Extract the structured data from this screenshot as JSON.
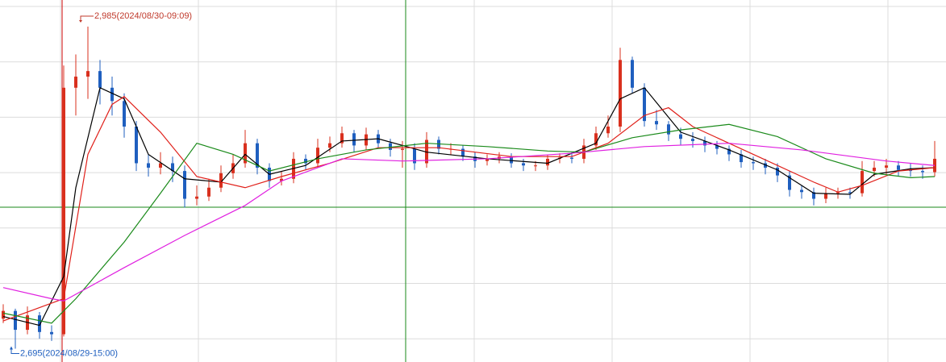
{
  "chart_data": {
    "type": "candlestick",
    "ylim": [
      2683,
      3009
    ],
    "up_color": "#d9301e",
    "down_color": "#1f5fbf",
    "open": [
      2722,
      2729,
      2712,
      2725,
      2710,
      2708,
      2930,
      2940,
      2945,
      2930,
      2918,
      2895,
      2862,
      2858,
      2862,
      2855,
      2830,
      2832,
      2840,
      2853,
      2862,
      2880,
      2858,
      2846,
      2848,
      2866,
      2862,
      2876,
      2880,
      2889,
      2878,
      2888,
      2880,
      2874,
      2875,
      2862,
      2883,
      2875,
      2875,
      2868,
      2864,
      2866,
      2868,
      2862,
      2860,
      2860,
      2866,
      2867,
      2866,
      2878,
      2889,
      2895,
      2955,
      2930,
      2900,
      2897,
      2888,
      2884,
      2882,
      2878,
      2875,
      2870,
      2863,
      2862,
      2858,
      2851,
      2838,
      2836,
      2830,
      2835,
      2836,
      2835,
      2855,
      2858,
      2860,
      2856,
      2855,
      2854
    ],
    "high": [
      2735,
      2731,
      2733,
      2728,
      2716,
      2950,
      2960,
      2985,
      2955,
      2940,
      2925,
      2900,
      2870,
      2872,
      2868,
      2860,
      2842,
      2848,
      2860,
      2870,
      2892,
      2884,
      2862,
      2855,
      2872,
      2870,
      2884,
      2886,
      2895,
      2892,
      2894,
      2892,
      2884,
      2882,
      2880,
      2890,
      2886,
      2880,
      2878,
      2872,
      2870,
      2872,
      2871,
      2866,
      2864,
      2870,
      2871,
      2872,
      2884,
      2895,
      2905,
      2966,
      2958,
      2934,
      2910,
      2900,
      2894,
      2890,
      2886,
      2882,
      2878,
      2874,
      2868,
      2866,
      2862,
      2855,
      2842,
      2840,
      2840,
      2840,
      2840,
      2864,
      2864,
      2866,
      2864,
      2862,
      2860,
      2882
    ],
    "low": [
      2718,
      2695,
      2708,
      2704,
      2702,
      2706,
      2905,
      2920,
      2915,
      2905,
      2885,
      2855,
      2850,
      2852,
      2845,
      2822,
      2824,
      2828,
      2836,
      2848,
      2858,
      2852,
      2840,
      2842,
      2844,
      2856,
      2858,
      2872,
      2876,
      2872,
      2874,
      2876,
      2868,
      2858,
      2856,
      2858,
      2870,
      2870,
      2864,
      2858,
      2860,
      2862,
      2858,
      2855,
      2855,
      2856,
      2862,
      2862,
      2862,
      2874,
      2885,
      2890,
      2925,
      2895,
      2892,
      2882,
      2878,
      2876,
      2872,
      2870,
      2864,
      2858,
      2856,
      2852,
      2845,
      2832,
      2830,
      2824,
      2826,
      2830,
      2830,
      2832,
      2850,
      2852,
      2850,
      2850,
      2848,
      2850
    ],
    "close": [
      2729,
      2712,
      2725,
      2710,
      2708,
      2930,
      2940,
      2945,
      2930,
      2918,
      2895,
      2862,
      2858,
      2862,
      2855,
      2830,
      2832,
      2840,
      2853,
      2862,
      2880,
      2858,
      2846,
      2848,
      2866,
      2862,
      2876,
      2880,
      2889,
      2878,
      2888,
      2880,
      2874,
      2875,
      2862,
      2883,
      2875,
      2875,
      2868,
      2864,
      2866,
      2868,
      2862,
      2860,
      2860,
      2866,
      2867,
      2866,
      2878,
      2889,
      2895,
      2955,
      2930,
      2900,
      2897,
      2888,
      2884,
      2882,
      2878,
      2875,
      2870,
      2863,
      2862,
      2858,
      2851,
      2838,
      2836,
      2830,
      2835,
      2836,
      2835,
      2855,
      2858,
      2860,
      2856,
      2855,
      2854,
      2866
    ],
    "series": [
      {
        "color": "#000000",
        "x": [
          0,
          3,
          5,
          6,
          8,
          10,
          12,
          15,
          18,
          20,
          22,
          25,
          28,
          31,
          35,
          40,
          45,
          49,
          51,
          53,
          56,
          60,
          64,
          67,
          70,
          72,
          75,
          77
        ],
        "values": [
          2724,
          2716,
          2760,
          2840,
          2930,
          2920,
          2870,
          2848,
          2845,
          2870,
          2852,
          2860,
          2882,
          2884,
          2872,
          2866,
          2862,
          2880,
          2920,
          2930,
          2890,
          2874,
          2856,
          2835,
          2834,
          2852,
          2857,
          2858
        ]
      },
      {
        "color": "#e0201a",
        "x": [
          0,
          5,
          7,
          9,
          10,
          13,
          16,
          20,
          23,
          27,
          31,
          36,
          42,
          47,
          50,
          53,
          55,
          57,
          60,
          63,
          67,
          69,
          71,
          74,
          77
        ],
        "values": [
          2720,
          2740,
          2870,
          2915,
          2922,
          2890,
          2850,
          2840,
          2850,
          2862,
          2876,
          2876,
          2868,
          2868,
          2880,
          2905,
          2912,
          2895,
          2880,
          2865,
          2845,
          2836,
          2842,
          2855,
          2858
        ]
      },
      {
        "color": "#1a8a1a",
        "x": [
          0,
          4,
          6,
          10,
          13,
          16,
          19,
          22,
          26,
          30,
          35,
          40,
          45,
          48,
          52,
          56,
          60,
          64,
          68,
          72,
          75,
          77
        ],
        "values": [
          2727,
          2718,
          2740,
          2791,
          2835,
          2880,
          2870,
          2855,
          2866,
          2874,
          2880,
          2877,
          2873,
          2872,
          2885,
          2892,
          2897,
          2886,
          2866,
          2853,
          2849,
          2850
        ]
      },
      {
        "color": "#e020e0",
        "x": [
          0,
          4,
          5,
          10,
          15,
          20,
          23,
          28,
          33,
          40,
          47,
          53,
          60,
          66,
          73,
          77
        ],
        "values": [
          2750,
          2740,
          2738,
          2768,
          2797,
          2824,
          2846,
          2866,
          2864,
          2866,
          2871,
          2877,
          2880,
          2874,
          2864,
          2860
        ]
      }
    ],
    "annotations": [
      {
        "text": "2,985(2024/08/30-09:09)",
        "value": 2985,
        "color": "#c0392b"
      },
      {
        "text": "2,695(2024/08/29-15:00)",
        "value": 2695,
        "color": "#1f5fbf"
      }
    ]
  }
}
